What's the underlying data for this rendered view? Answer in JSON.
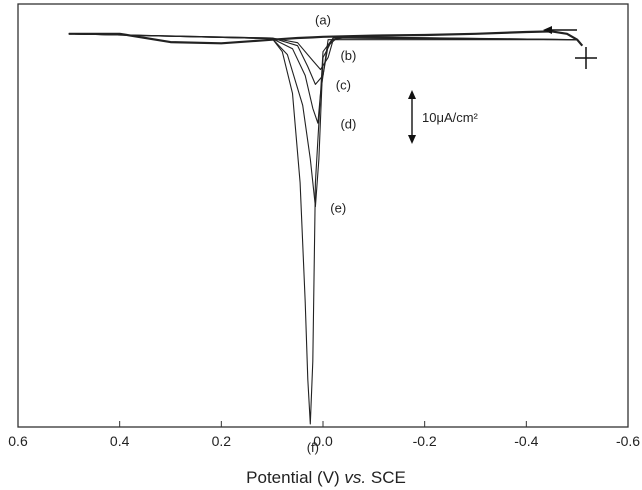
{
  "chart_data": {
    "type": "line",
    "title": "",
    "xlabel_main": "Potential (V) ",
    "xlabel_italic": "vs.",
    "xlabel_tail": " SCE",
    "ylabel": "",
    "xlim": [
      0.6,
      -0.6
    ],
    "x_reversed": true,
    "x_ticks": [
      "0.6",
      "0.4",
      "0.2",
      "0.0",
      "-0.2",
      "-0.4",
      "-0.6"
    ],
    "x_tick_values": [
      0.6,
      0.4,
      0.2,
      0.0,
      -0.2,
      -0.4,
      -0.6
    ],
    "ylim": [
      -66,
      5
    ],
    "y_units": "uA/cm2",
    "y_ticks_shown": false,
    "scan_direction": "negative",
    "scale_bar": {
      "label": "10μA/cm²",
      "value": 10
    },
    "series": [
      {
        "name": "(a)",
        "x": [
          0.5,
          0.4,
          0.3,
          0.2,
          0.1,
          0.05,
          0.02,
          0.0,
          -0.1,
          -0.2,
          -0.3,
          -0.4,
          -0.45,
          -0.48,
          -0.5,
          -0.51
        ],
        "y": [
          0,
          0,
          -1.4,
          -1.6,
          -1,
          -0.7,
          -0.6,
          -0.5,
          -0.3,
          -0.2,
          0,
          0.3,
          0.4,
          0,
          -1,
          -2
        ]
      },
      {
        "name": "(b)",
        "x": [
          0.5,
          0.1,
          0.05,
          0.02,
          0.005,
          -0.01,
          -0.02,
          -0.05,
          -0.5
        ],
        "y": [
          0,
          -0.7,
          -1.5,
          -4.5,
          -6,
          -4,
          -1,
          -0.5,
          -1
        ]
      },
      {
        "name": "(c)",
        "x": [
          0.5,
          0.1,
          0.05,
          0.03,
          0.015,
          0.0,
          -0.01,
          -0.03,
          -0.5
        ],
        "y": [
          0,
          -0.7,
          -2,
          -5.5,
          -8.5,
          -7,
          -2,
          -0.5,
          -1
        ]
      },
      {
        "name": "(d)",
        "x": [
          0.5,
          0.1,
          0.06,
          0.035,
          0.02,
          0.01,
          0.005,
          -0.01,
          -0.5
        ],
        "y": [
          0,
          -0.8,
          -2.5,
          -7,
          -12.5,
          -15,
          -10,
          -1,
          -1
        ]
      },
      {
        "name": "(e)",
        "x": [
          0.5,
          0.1,
          0.07,
          0.04,
          0.025,
          0.015,
          0.008,
          0.0,
          -0.02,
          -0.5
        ],
        "y": [
          0,
          -0.8,
          -3.5,
          -12,
          -21,
          -29,
          -21,
          -4,
          -0.7,
          -1
        ]
      },
      {
        "name": "(f)",
        "x": [
          0.5,
          0.1,
          0.08,
          0.06,
          0.045,
          0.035,
          0.03,
          0.025,
          0.02,
          0.015,
          0.0,
          -0.02,
          -0.5
        ],
        "y": [
          0,
          -0.8,
          -3,
          -10,
          -25,
          -45,
          -58,
          -65.5,
          -55,
          -25,
          -3,
          -0.7,
          -1
        ]
      }
    ],
    "annotations": [
      {
        "text": "(a)",
        "x": 0.0,
        "y": 2.2
      },
      {
        "text": "(b)",
        "x": -0.05,
        "y": -3.7
      },
      {
        "text": "(c)",
        "x": -0.04,
        "y": -8.7
      },
      {
        "text": "(d)",
        "x": -0.05,
        "y": -15.2
      },
      {
        "text": "(e)",
        "x": -0.03,
        "y": -29.3
      },
      {
        "text": "(f)",
        "x": 0.02,
        "y": -69.5
      }
    ]
  }
}
